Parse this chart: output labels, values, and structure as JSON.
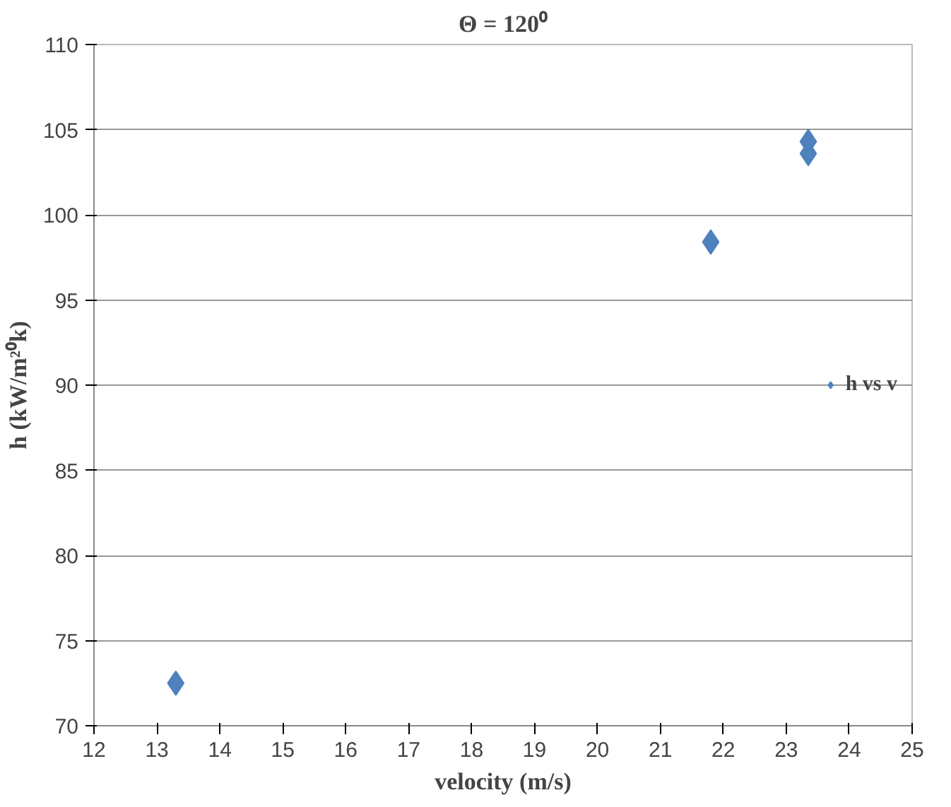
{
  "chart_data": {
    "type": "scatter",
    "title": "Θ = 120⁰",
    "xlabel": "velocity (m/s)",
    "ylabel": "h (kW/m²⁰k)",
    "xlim": [
      12,
      25
    ],
    "xticks": [
      12,
      13,
      14,
      15,
      16,
      17,
      18,
      19,
      20,
      21,
      22,
      23,
      24,
      25
    ],
    "ylim": [
      70,
      110
    ],
    "yticks": [
      70,
      75,
      80,
      85,
      90,
      95,
      100,
      105,
      110
    ],
    "grid": "y",
    "legend": "right",
    "marker": "diamond",
    "series": [
      {
        "name": "h vs v",
        "color": "#4f81bd",
        "x": [
          13.3,
          21.8,
          23.35,
          23.35
        ],
        "values": [
          72.5,
          98.4,
          104.3,
          103.6
        ]
      }
    ]
  }
}
